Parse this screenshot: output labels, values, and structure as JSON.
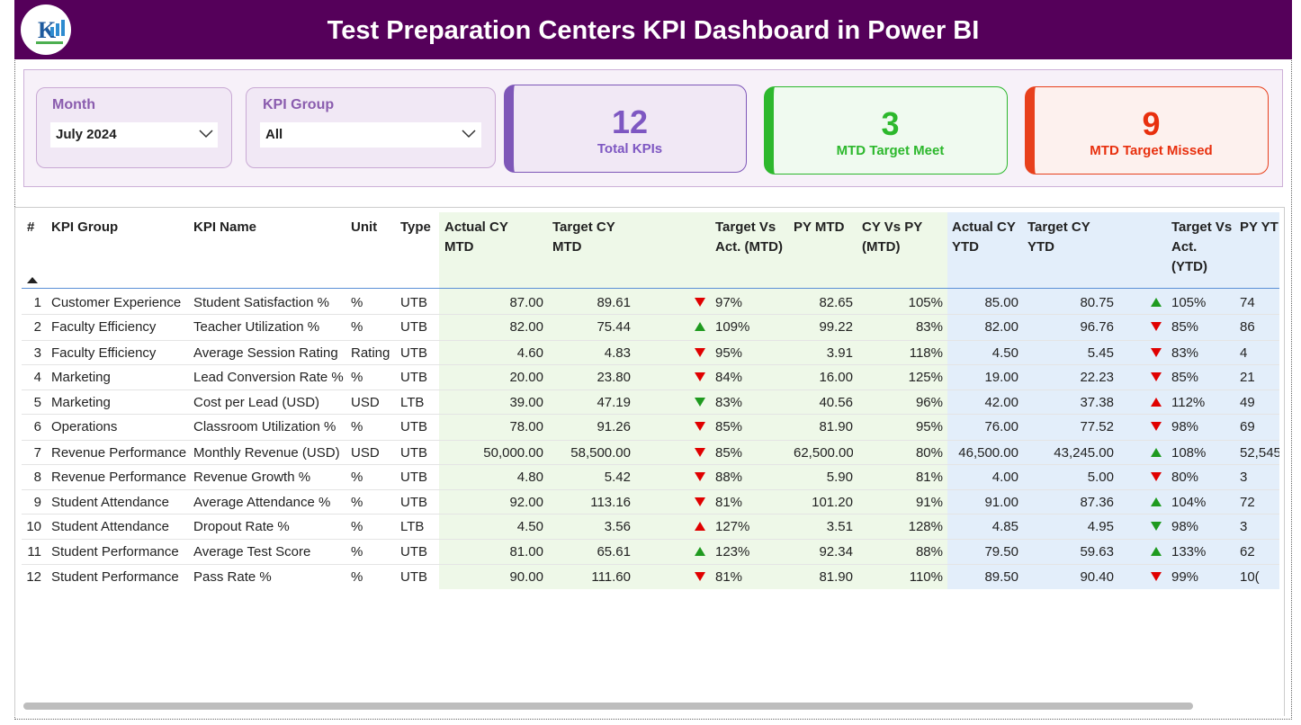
{
  "header": {
    "title": "Test Preparation Centers KPI Dashboard in Power BI"
  },
  "filters": [
    {
      "label": "Month",
      "value": "July 2024"
    },
    {
      "label": "KPI Group",
      "value": "All"
    }
  ],
  "cards": [
    {
      "value": 12,
      "label": "Total KPIs"
    },
    {
      "value": 3,
      "label": "MTD Target Meet"
    },
    {
      "value": 9,
      "label": "MTD Target Missed"
    }
  ],
  "table": {
    "columns": [
      "#",
      "KPI Group",
      "KPI Name",
      "Unit",
      "Type",
      "Actual CY MTD",
      "Target CY MTD",
      "Target Vs Act. (MTD)",
      "PY MTD",
      "CY Vs PY (MTD)",
      "Actual CY YTD",
      "Target CY YTD",
      "Target Vs Act. (YTD)",
      "PY YT"
    ],
    "rows": [
      [
        1,
        "Customer Experience",
        "Student Satisfaction %",
        "%",
        "UTB",
        "87.00",
        "89.61",
        "97%",
        "82.65",
        "105%",
        "85.00",
        "80.75",
        "105%",
        "74"
      ],
      [
        2,
        "Faculty Efficiency",
        "Teacher Utilization %",
        "%",
        "UTB",
        "82.00",
        "75.44",
        "109%",
        "99.22",
        "83%",
        "82.00",
        "96.76",
        "85%",
        "86"
      ],
      [
        3,
        "Faculty Efficiency",
        "Average Session Rating",
        "Rating",
        "UTB",
        "4.60",
        "4.83",
        "95%",
        "3.91",
        "118%",
        "4.50",
        "5.45",
        "83%",
        "4"
      ],
      [
        4,
        "Marketing",
        "Lead Conversion Rate %",
        "%",
        "UTB",
        "20.00",
        "23.80",
        "84%",
        "16.00",
        "125%",
        "19.00",
        "22.23",
        "85%",
        "21"
      ],
      [
        5,
        "Marketing",
        "Cost per Lead (USD)",
        "USD",
        "LTB",
        "39.00",
        "47.19",
        "83%",
        "40.56",
        "96%",
        "42.00",
        "37.38",
        "112%",
        "49"
      ],
      [
        6,
        "Operations",
        "Classroom Utilization %",
        "%",
        "UTB",
        "78.00",
        "91.26",
        "85%",
        "81.90",
        "95%",
        "76.00",
        "77.52",
        "98%",
        "69"
      ],
      [
        7,
        "Revenue Performance",
        "Monthly Revenue (USD)",
        "USD",
        "UTB",
        "50,000.00",
        "58,500.00",
        "85%",
        "62,500.00",
        "80%",
        "46,500.00",
        "43,245.00",
        "108%",
        "52,545"
      ],
      [
        8,
        "Revenue Performance",
        "Revenue Growth %",
        "%",
        "UTB",
        "4.80",
        "5.42",
        "88%",
        "5.90",
        "81%",
        "4.00",
        "5.00",
        "80%",
        "3"
      ],
      [
        9,
        "Student Attendance",
        "Average Attendance %",
        "%",
        "UTB",
        "92.00",
        "113.16",
        "81%",
        "101.20",
        "91%",
        "91.00",
        "87.36",
        "104%",
        "72"
      ],
      [
        10,
        "Student Attendance",
        "Dropout Rate %",
        "%",
        "LTB",
        "4.50",
        "3.56",
        "127%",
        "3.51",
        "128%",
        "4.85",
        "4.95",
        "98%",
        "3"
      ],
      [
        11,
        "Student Performance",
        "Average Test Score",
        "%",
        "UTB",
        "81.00",
        "65.61",
        "123%",
        "92.34",
        "88%",
        "79.50",
        "59.63",
        "133%",
        "62"
      ],
      [
        12,
        "Student Performance",
        "Pass Rate %",
        "%",
        "UTB",
        "90.00",
        "111.60",
        "81%",
        "81.90",
        "110%",
        "89.50",
        "90.40",
        "99%",
        "10("
      ]
    ]
  }
}
